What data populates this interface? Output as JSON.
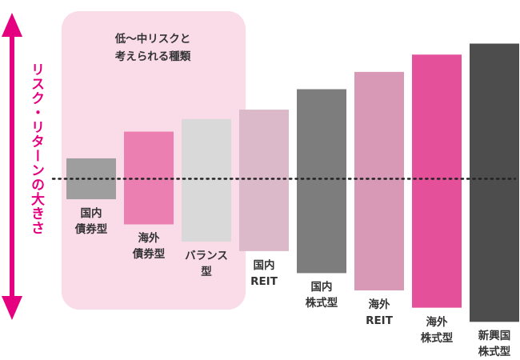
{
  "colors": {
    "low_band_fill": "#fadbe8",
    "accent": "#e4007f",
    "dotted_line": "#222222"
  },
  "y_axis": {
    "label": "リスク・リターンの大きさ",
    "arrow_direction": "both"
  },
  "low_band": {
    "title_lines": [
      "低～中リスクと",
      "考えられる種類"
    ]
  },
  "chart_data": {
    "type": "bar",
    "kind": "floating-range",
    "title": "",
    "xlabel": "",
    "ylabel": "リスク・リターンの大きさ",
    "ylim": [
      -10,
      10
    ],
    "baseline": 0,
    "categories": [
      [
        "国内",
        "債券型"
      ],
      [
        "海外",
        "債券型"
      ],
      [
        "バランス",
        "型"
      ],
      [
        "国内",
        "REIT"
      ],
      [
        "国内",
        "株式型"
      ],
      [
        "海外",
        "REIT"
      ],
      [
        "海外",
        "株式型"
      ],
      [
        "新興国",
        "株式型"
      ]
    ],
    "ranges": [
      [
        -1.3,
        1.3
      ],
      [
        -2.9,
        3.0
      ],
      [
        -4.0,
        3.8
      ],
      [
        -4.6,
        4.4
      ],
      [
        -6.0,
        5.7
      ],
      [
        -7.1,
        6.8
      ],
      [
        -8.2,
        7.9
      ],
      [
        -9.1,
        8.6
      ]
    ],
    "bar_colors": [
      "#9e9e9e",
      "#ec7fb1",
      "#d9d9d9",
      "#dcb9c8",
      "#7d7d7d",
      "#d799b6",
      "#e5509b",
      "#4d4d4d"
    ],
    "low_risk_group": [
      "国内債券型",
      "海外債券型",
      "バランス型"
    ]
  }
}
